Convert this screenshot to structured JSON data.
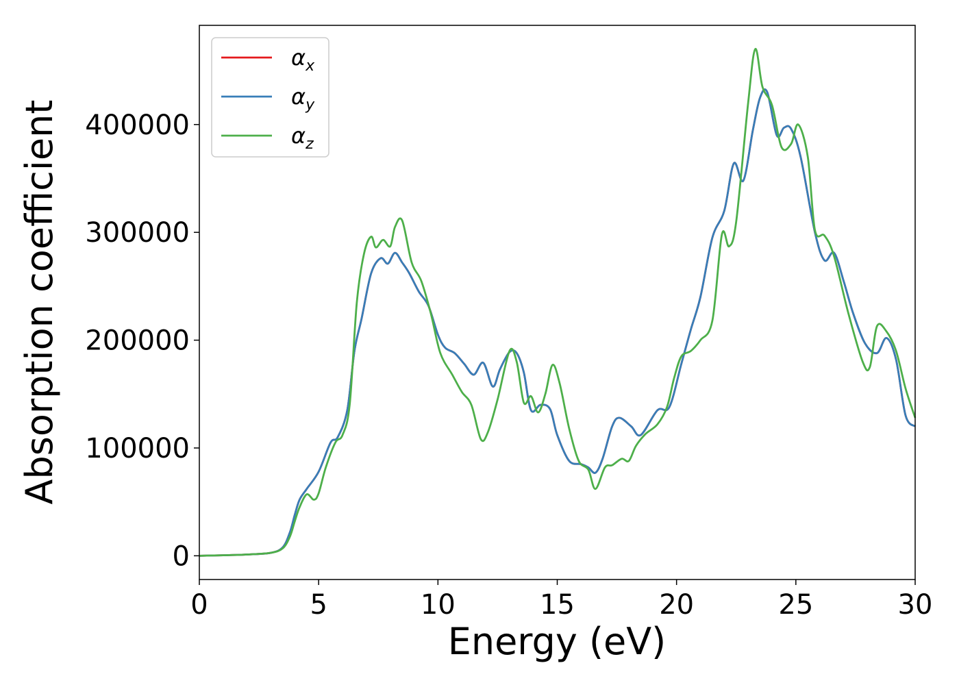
{
  "chart_data": {
    "type": "line",
    "xlabel": "Energy (eV)",
    "ylabel": "Absorption coefficient",
    "xlim": [
      0,
      30
    ],
    "ylim": [
      -22000,
      492000
    ],
    "xticks": [
      0,
      5,
      10,
      15,
      20,
      25,
      30
    ],
    "yticks": [
      0,
      100000,
      200000,
      300000,
      400000
    ],
    "grid": false,
    "legend_position": "top-left",
    "series": [
      {
        "name": "α",
        "subscript": "x",
        "color": "#e41a1c",
        "x": [
          0,
          1,
          2,
          3,
          3.5,
          3.8,
          4,
          4.2,
          4.5,
          5,
          5.5,
          5.8,
          6.2,
          6.5,
          6.8,
          7.2,
          7.6,
          7.9,
          8.2,
          8.5,
          8.8,
          9.2,
          9.6,
          10,
          10.3,
          10.7,
          11.1,
          11.5,
          11.9,
          12.3,
          12.6,
          13,
          13.3,
          13.6,
          13.9,
          14.3,
          14.7,
          15,
          15.5,
          16,
          16.3,
          16.6,
          16.9,
          17.3,
          17.6,
          18.1,
          18.5,
          19.2,
          19.7,
          20.2,
          20.6,
          21,
          21.5,
          22,
          22.4,
          22.8,
          23.2,
          23.5,
          23.8,
          24.2,
          24.5,
          24.8,
          25.2,
          25.8,
          26.2,
          26.6,
          27,
          27.4,
          27.9,
          28.4,
          28.8,
          29.2,
          29.6,
          30
        ],
        "y": [
          0,
          500,
          1200,
          2800,
          8000,
          22000,
          38000,
          52000,
          62000,
          78000,
          105000,
          110000,
          135000,
          190000,
          220000,
          262000,
          276000,
          271000,
          281000,
          272000,
          262000,
          245000,
          232000,
          205000,
          193000,
          188000,
          178000,
          168000,
          179000,
          157000,
          173000,
          189000,
          188000,
          170000,
          135000,
          140000,
          136000,
          112000,
          88000,
          85000,
          82000,
          77000,
          90000,
          120000,
          128000,
          120000,
          112000,
          135000,
          138000,
          178000,
          210000,
          240000,
          295000,
          320000,
          364000,
          348000,
          395000,
          425000,
          430000,
          390000,
          397000,
          396000,
          370000,
          300000,
          274000,
          281000,
          255000,
          225000,
          197000,
          188000,
          202000,
          182000,
          130000,
          120000
        ]
      },
      {
        "name": "α",
        "subscript": "y",
        "color": "#377eb8",
        "x": [
          0,
          1,
          2,
          3,
          3.5,
          3.8,
          4,
          4.2,
          4.5,
          5,
          5.5,
          5.8,
          6.2,
          6.5,
          6.8,
          7.2,
          7.6,
          7.9,
          8.2,
          8.5,
          8.8,
          9.2,
          9.6,
          10,
          10.3,
          10.7,
          11.1,
          11.5,
          11.9,
          12.3,
          12.6,
          13,
          13.3,
          13.6,
          13.9,
          14.3,
          14.7,
          15,
          15.5,
          16,
          16.3,
          16.6,
          16.9,
          17.3,
          17.6,
          18.1,
          18.5,
          19.2,
          19.7,
          20.2,
          20.6,
          21,
          21.5,
          22,
          22.4,
          22.8,
          23.2,
          23.5,
          23.8,
          24.2,
          24.5,
          24.8,
          25.2,
          25.8,
          26.2,
          26.6,
          27,
          27.4,
          27.9,
          28.4,
          28.8,
          29.2,
          29.6,
          30
        ],
        "y": [
          0,
          500,
          1200,
          2800,
          8000,
          22000,
          38000,
          52000,
          62000,
          78000,
          105000,
          110000,
          135000,
          190000,
          220000,
          262000,
          276000,
          271000,
          281000,
          272000,
          262000,
          245000,
          232000,
          205000,
          193000,
          188000,
          178000,
          168000,
          179000,
          157000,
          173000,
          189000,
          188000,
          170000,
          135000,
          140000,
          136000,
          112000,
          88000,
          85000,
          82000,
          77000,
          90000,
          120000,
          128000,
          120000,
          112000,
          135000,
          138000,
          178000,
          210000,
          240000,
          295000,
          320000,
          364000,
          348000,
          395000,
          425000,
          430000,
          390000,
          397000,
          396000,
          370000,
          300000,
          274000,
          281000,
          255000,
          225000,
          197000,
          188000,
          202000,
          182000,
          130000,
          120000
        ]
      },
      {
        "name": "α",
        "subscript": "z",
        "color": "#4daf4a",
        "x": [
          0,
          1,
          2,
          3,
          3.5,
          3.8,
          4,
          4.2,
          4.5,
          4.8,
          5,
          5.3,
          5.7,
          6,
          6.3,
          6.6,
          6.9,
          7.2,
          7.4,
          7.7,
          8,
          8.2,
          8.5,
          8.9,
          9.3,
          9.7,
          10.1,
          10.6,
          11,
          11.4,
          11.8,
          12.1,
          12.5,
          13,
          13.3,
          13.6,
          13.9,
          14.2,
          14.5,
          14.8,
          15.1,
          15.5,
          15.9,
          16.3,
          16.6,
          17,
          17.3,
          17.7,
          18,
          18.3,
          18.7,
          19.2,
          19.6,
          19.9,
          20.2,
          20.6,
          21,
          21.5,
          21.9,
          22.2,
          22.5,
          23,
          23.3,
          23.6,
          24,
          24.4,
          24.8,
          25.1,
          25.5,
          25.8,
          26.2,
          26.6,
          27.2,
          27.8,
          28.1,
          28.4,
          28.8,
          29.2,
          29.6,
          30
        ],
        "y": [
          0,
          500,
          1200,
          2800,
          7000,
          18000,
          32000,
          45000,
          57000,
          52000,
          58000,
          82000,
          105000,
          112000,
          140000,
          235000,
          280000,
          296000,
          286000,
          293000,
          287000,
          305000,
          311000,
          272000,
          255000,
          225000,
          188000,
          168000,
          152000,
          140000,
          108000,
          115000,
          145000,
          190000,
          180000,
          142000,
          148000,
          133000,
          150000,
          177000,
          160000,
          118000,
          88000,
          80000,
          62000,
          82000,
          84000,
          90000,
          88000,
          102000,
          113000,
          122000,
          138000,
          165000,
          185000,
          190000,
          200000,
          218000,
          298000,
          287000,
          310000,
          420000,
          470000,
          435000,
          418000,
          379000,
          382000,
          400000,
          370000,
          302000,
          297000,
          278000,
          225000,
          180000,
          175000,
          213000,
          208000,
          190000,
          155000,
          128000
        ]
      }
    ]
  }
}
